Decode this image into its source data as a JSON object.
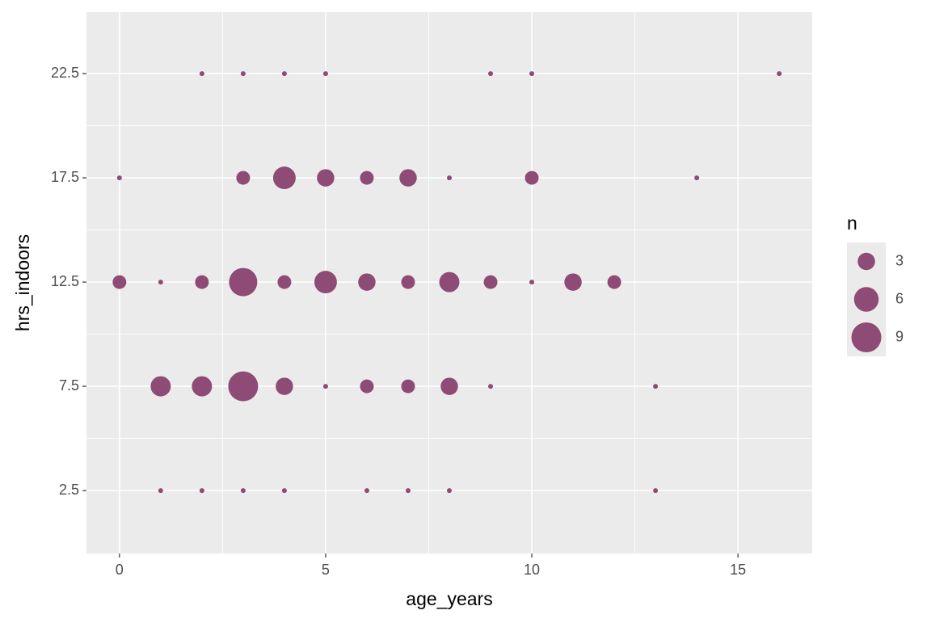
{
  "chart_data": {
    "type": "scatter",
    "x_label": "age_years",
    "y_label": "hrs_indoors",
    "x": [
      2,
      3,
      4,
      5,
      9,
      10,
      16,
      0,
      3,
      4,
      5,
      6,
      7,
      8,
      10,
      14,
      0,
      1,
      2,
      3,
      4,
      5,
      6,
      7,
      8,
      9,
      10,
      11,
      12,
      1,
      2,
      3,
      4,
      5,
      6,
      7,
      8,
      9,
      13,
      1,
      2,
      3,
      4,
      6,
      7,
      8,
      13
    ],
    "y": [
      22.5,
      22.5,
      22.5,
      22.5,
      22.5,
      22.5,
      22.5,
      17.5,
      17.5,
      17.5,
      17.5,
      17.5,
      17.5,
      17.5,
      17.5,
      17.5,
      12.5,
      12.5,
      12.5,
      12.5,
      12.5,
      12.5,
      12.5,
      12.5,
      12.5,
      12.5,
      12.5,
      12.5,
      12.5,
      7.5,
      7.5,
      7.5,
      7.5,
      7.5,
      7.5,
      7.5,
      7.5,
      7.5,
      7.5,
      2.5,
      2.5,
      2.5,
      2.5,
      2.5,
      2.5,
      2.5,
      2.5
    ],
    "sizes": [
      1,
      1,
      1,
      1,
      1,
      1,
      1,
      1,
      2,
      5,
      3,
      2,
      3,
      1,
      2,
      1,
      2,
      1,
      2,
      8,
      2,
      5,
      3,
      2,
      4,
      2,
      1,
      3,
      2,
      4,
      4,
      9,
      3,
      1,
      2,
      2,
      3,
      1,
      1,
      1,
      1,
      1,
      1,
      1,
      1,
      1,
      1
    ],
    "color": "#8e4b75",
    "xlim": [
      -0.8,
      16.8
    ],
    "xticks": [
      0,
      5,
      10,
      15
    ],
    "ylim": [
      -0.52,
      25.45
    ],
    "yticks": [
      2.5,
      7.5,
      12.5,
      17.5,
      22.5
    ],
    "grid": true,
    "size_legend": {
      "title": "n",
      "values": [
        3,
        6,
        9
      ]
    }
  }
}
